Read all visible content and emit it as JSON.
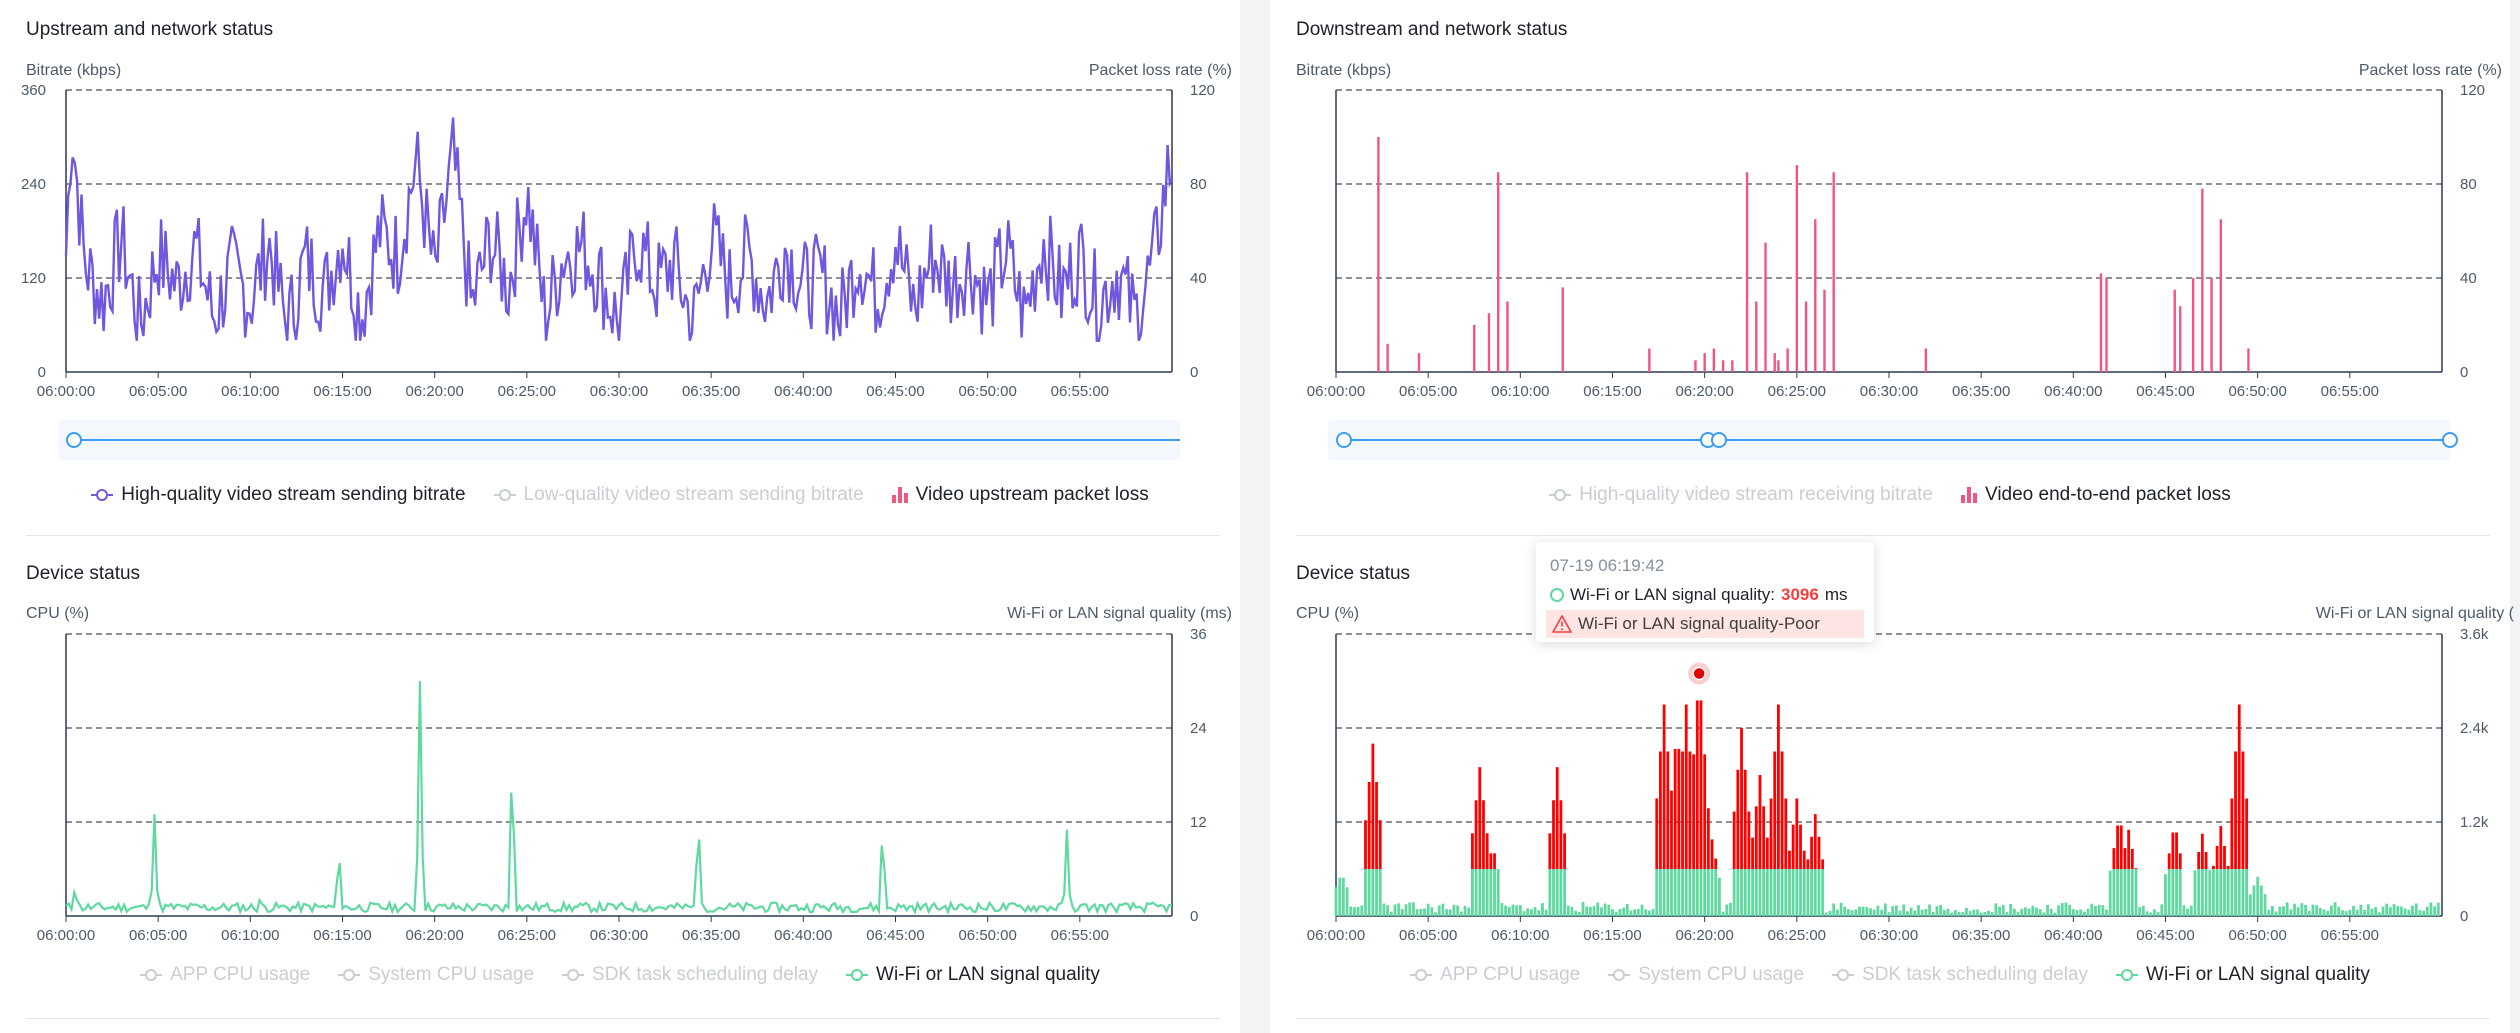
{
  "colors": {
    "purple": "#7157e0",
    "pink": "#f0567f",
    "green": "#5fd9a0",
    "red": "#ff0000",
    "blue": "#3a9cf5",
    "disabled": "#c9cdd4"
  },
  "x_ticks": [
    "06:00:00",
    "06:05:00",
    "06:10:00",
    "06:15:00",
    "06:20:00",
    "06:25:00",
    "06:30:00",
    "06:35:00",
    "06:40:00",
    "06:45:00",
    "06:50:00",
    "06:55:00"
  ],
  "upstream": {
    "title": "Upstream and network status",
    "left_axis_label": "Bitrate (kbps)",
    "right_axis_label": "Packet loss rate (%)",
    "left_ticks": [
      "360",
      "240",
      "120",
      "0"
    ],
    "right_ticks": [
      "120",
      "80",
      "40",
      "0"
    ],
    "legend": [
      {
        "label": "High-quality video stream sending bitrate",
        "icon": "line-icon",
        "state": "on"
      },
      {
        "label": "Low-quality video stream sending bitrate",
        "icon": "line-icon",
        "state": "off"
      },
      {
        "label": "Video upstream packet loss",
        "icon": "bar-icon",
        "state": "on"
      }
    ]
  },
  "downstream": {
    "title": "Downstream and network status",
    "left_axis_label": "Bitrate (kbps)",
    "right_axis_label": "Packet loss rate (%)",
    "left_ticks": [],
    "right_ticks": [
      "120",
      "80",
      "40",
      "0"
    ],
    "legend": [
      {
        "label": "High-quality video stream receiving bitrate",
        "icon": "line-icon",
        "state": "off"
      },
      {
        "label": "Video end-to-end packet loss",
        "icon": "bar-icon",
        "state": "on"
      }
    ]
  },
  "device_left": {
    "title": "Device status",
    "left_axis_label": "CPU (%)",
    "right_axis_label": "Wi-Fi or LAN signal quality (ms)",
    "left_ticks": [],
    "right_ticks": [
      "36",
      "24",
      "12",
      "0"
    ],
    "legend": [
      {
        "label": "APP CPU usage",
        "icon": "line-icon",
        "state": "off"
      },
      {
        "label": "System CPU usage",
        "icon": "line-icon",
        "state": "off"
      },
      {
        "label": "SDK task scheduling delay",
        "icon": "line-icon",
        "state": "off"
      },
      {
        "label": "Wi-Fi or LAN signal quality",
        "icon": "line-icon",
        "state": "on"
      }
    ]
  },
  "device_right": {
    "title": "Device status",
    "left_axis_label": "CPU (%)",
    "right_axis_label": "Wi-Fi or LAN signal quality (",
    "left_ticks": [],
    "right_ticks": [
      "3.6k",
      "2.4k",
      "1.2k",
      "0"
    ],
    "legend": [
      {
        "label": "APP CPU usage",
        "icon": "line-icon",
        "state": "off"
      },
      {
        "label": "System CPU usage",
        "icon": "line-icon",
        "state": "off"
      },
      {
        "label": "SDK task scheduling delay",
        "icon": "line-icon",
        "state": "off"
      },
      {
        "label": "Wi-Fi or LAN signal quality",
        "icon": "line-icon",
        "state": "on"
      }
    ]
  },
  "tooltip": {
    "time": "07-19 06:19:42",
    "series_label": "Wi-Fi or LAN signal quality:",
    "value": "3096",
    "unit": "ms",
    "warning": "Wi-Fi or LAN signal quality-Poor",
    "icon": "warning-icon"
  },
  "chart_data": [
    {
      "type": "line",
      "title": "Upstream and network status",
      "ylabel": "Bitrate (kbps)",
      "y2label": "Packet loss rate (%)",
      "ylim": [
        0,
        360
      ],
      "y2lim": [
        0,
        120
      ],
      "x_range": [
        "06:00:00",
        "06:59:59"
      ],
      "grid": true,
      "legend_position": "bottom",
      "series": [
        {
          "name": "High-quality video stream sending bitrate",
          "color": "#7157e0",
          "x_minutes": [
            0,
            0.3,
            1,
            2,
            3,
            4,
            5,
            6,
            7,
            8,
            9,
            10,
            11,
            12,
            13,
            14,
            15,
            16,
            17,
            18,
            19,
            20,
            21,
            22,
            23,
            24,
            25,
            26,
            27,
            28,
            29,
            30,
            31,
            32,
            33,
            34,
            35,
            36,
            37,
            38,
            39,
            40,
            41,
            42,
            43,
            44,
            45,
            46,
            47,
            48,
            49,
            50,
            51,
            52,
            53,
            54,
            55,
            56,
            57,
            58,
            59,
            59.8
          ],
          "values": [
            150,
            320,
            140,
            90,
            170,
            60,
            150,
            110,
            160,
            70,
            130,
            90,
            165,
            55,
            145,
            100,
            175,
            70,
            180,
            150,
            270,
            120,
            275,
            80,
            170,
            110,
            230,
            70,
            150,
            160,
            120,
            60,
            170,
            110,
            140,
            60,
            175,
            110,
            150,
            90,
            160,
            110,
            120,
            70,
            150,
            95,
            170,
            80,
            150,
            110,
            140,
            90,
            155,
            70,
            170,
            100,
            150,
            85,
            130,
            70,
            140,
            260
          ]
        },
        {
          "name": "Low-quality video stream sending bitrate",
          "visible": false,
          "x_minutes": [],
          "values": []
        },
        {
          "name": "Video upstream packet loss",
          "type": "bar",
          "axis": "right",
          "x_minutes": [],
          "values": []
        }
      ]
    },
    {
      "type": "bar",
      "title": "Downstream and network status",
      "ylabel": "Bitrate (kbps)",
      "y2label": "Packet loss rate (%)",
      "y2lim": [
        0,
        120
      ],
      "x_range": [
        "06:00:00",
        "06:59:59"
      ],
      "grid": true,
      "legend_position": "bottom",
      "series": [
        {
          "name": "High-quality video stream receiving bitrate",
          "visible": false,
          "x_minutes": [],
          "values": []
        },
        {
          "name": "Video end-to-end packet loss",
          "color": "#f0567f",
          "axis": "right",
          "x_minutes": [
            2.3,
            2.8,
            4.5,
            7.5,
            8.3,
            8.8,
            9.3,
            12.3,
            17,
            19.5,
            20,
            20.5,
            21,
            21.5,
            22.3,
            22.8,
            23.3,
            23.8,
            24,
            24.5,
            25,
            25.5,
            26,
            26.5,
            27,
            32,
            41.5,
            41.8,
            45.5,
            45.8,
            46.5,
            47,
            47.5,
            48,
            49.5
          ],
          "values": [
            100,
            12,
            8,
            20,
            25,
            85,
            30,
            36,
            10,
            5,
            8,
            10,
            5,
            5,
            85,
            30,
            55,
            8,
            5,
            10,
            88,
            30,
            65,
            35,
            85,
            10,
            42,
            40,
            35,
            28,
            40,
            78,
            40,
            65,
            10
          ]
        }
      ]
    },
    {
      "type": "line",
      "title": "Device status",
      "ylabel": "CPU (%)",
      "y2label": "Wi-Fi or LAN signal quality (ms)",
      "y2lim": [
        0,
        36
      ],
      "x_range": [
        "06:00:00",
        "06:59:59"
      ],
      "grid": true,
      "legend_position": "bottom",
      "series": [
        {
          "name": "APP CPU usage",
          "visible": false,
          "x_minutes": [],
          "values": []
        },
        {
          "name": "System CPU usage",
          "visible": false,
          "x_minutes": [],
          "values": []
        },
        {
          "name": "SDK task scheduling delay",
          "visible": false,
          "x_minutes": [],
          "values": []
        },
        {
          "name": "Wi-Fi or LAN signal quality",
          "color": "#5fd9a0",
          "axis": "right",
          "x_minutes": [
            0.5,
            4.8,
            10.5,
            14.8,
            19.2,
            24.2,
            34.3,
            44.3,
            54.3
          ],
          "values": [
            4,
            13,
            2,
            9,
            30,
            21,
            13,
            12,
            11
          ]
        }
      ]
    },
    {
      "type": "line",
      "title": "Device status",
      "ylabel": "CPU (%)",
      "y2label": "Wi-Fi or LAN signal quality (",
      "y2lim": [
        0,
        3600
      ],
      "x_range": [
        "06:00:00",
        "06:59:59"
      ],
      "grid": true,
      "legend_position": "bottom",
      "series": [
        {
          "name": "APP CPU usage",
          "visible": false,
          "x_minutes": [],
          "values": []
        },
        {
          "name": "System CPU usage",
          "visible": false,
          "x_minutes": [],
          "values": []
        },
        {
          "name": "SDK task scheduling delay",
          "visible": false,
          "x_minutes": [],
          "values": []
        },
        {
          "name": "Wi-Fi or LAN signal quality",
          "color": "#5fd9a0",
          "poor_color": "#ff0000",
          "axis": "right",
          "x_minutes": [
            0.3,
            2,
            7.8,
            8.5,
            12,
            17.8,
            18.5,
            19,
            19.7,
            20.3,
            22,
            23,
            24,
            25,
            26,
            42.5,
            43,
            45.5,
            47,
            48,
            49,
            50
          ],
          "values": [
            550,
            2200,
            1900,
            900,
            1900,
            2700,
            2400,
            2700,
            3096,
            1100,
            2400,
            1800,
            2700,
            1500,
            1300,
            1300,
            1100,
            1200,
            1050,
            1150,
            2700,
            500
          ]
        }
      ]
    }
  ]
}
